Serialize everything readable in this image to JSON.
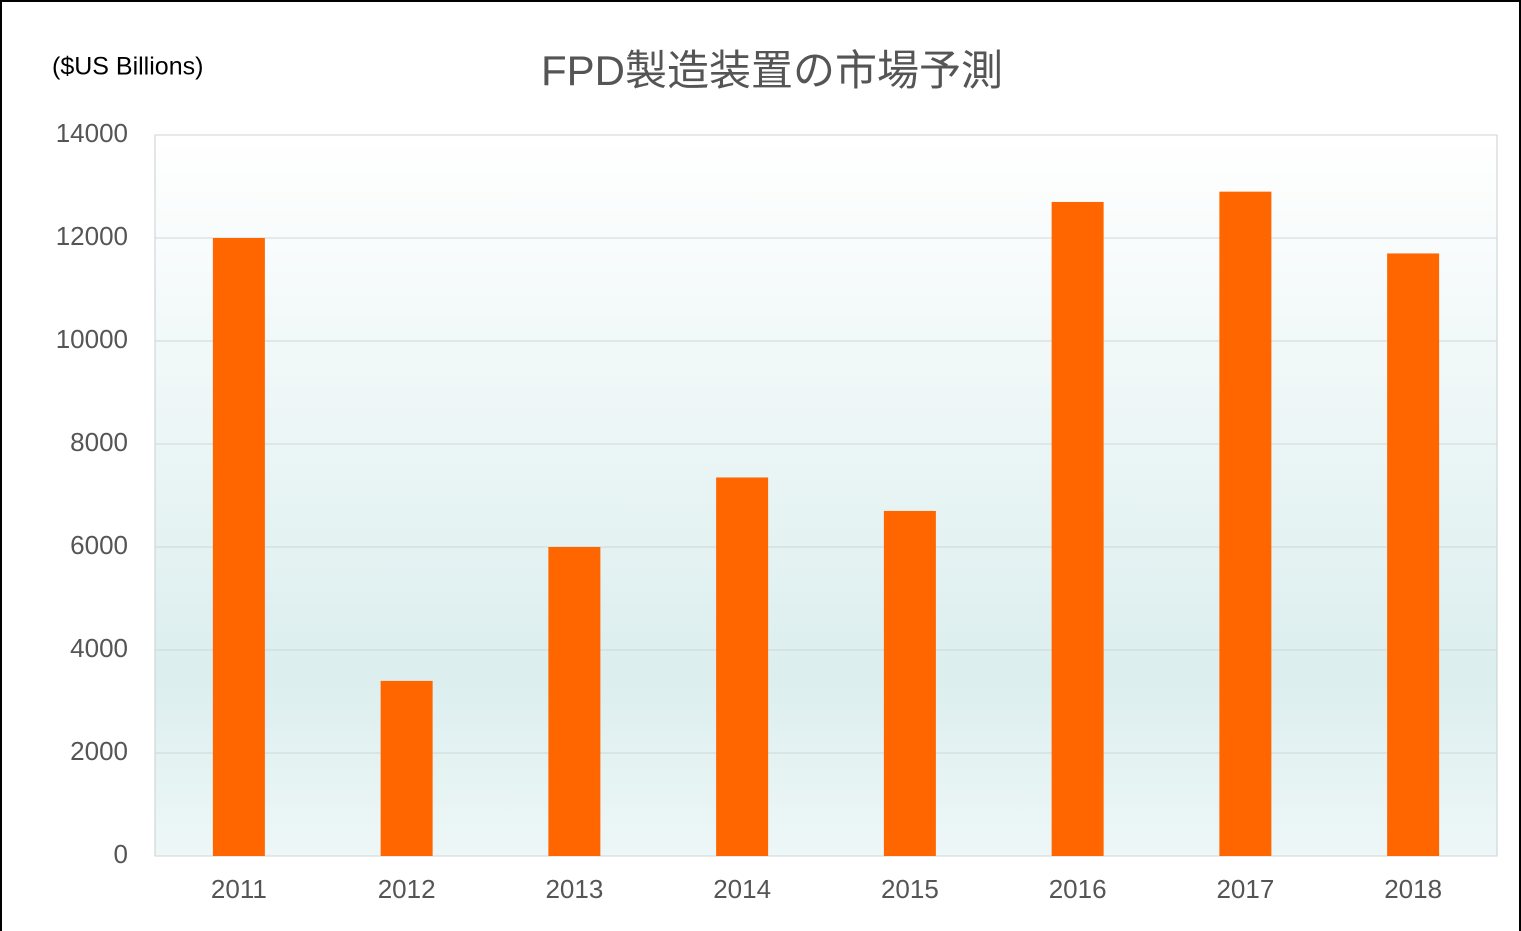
{
  "chart_data": {
    "type": "bar",
    "title": "FPD製造装置の市場予測",
    "y_label": "($US Billions)",
    "categories": [
      "2011",
      "2012",
      "2013",
      "2014",
      "2015",
      "2016",
      "2017",
      "2018"
    ],
    "values": [
      12000,
      3400,
      6000,
      7350,
      6700,
      12700,
      12900,
      11700
    ],
    "color": "#ff6600",
    "ylim": [
      0,
      14000
    ],
    "yticks": [
      0,
      2000,
      4000,
      6000,
      8000,
      10000,
      12000,
      14000
    ],
    "grid": true
  }
}
